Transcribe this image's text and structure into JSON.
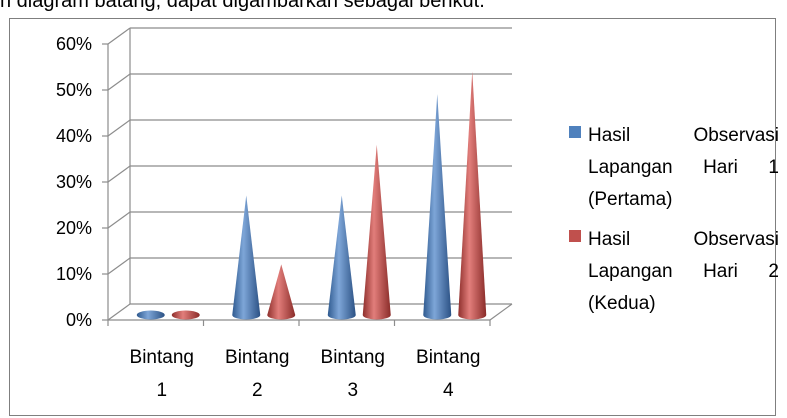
{
  "page": {
    "intro_text": "n diagram batang, dapat digambarkan sebagai berikut."
  },
  "chart_data": {
    "type": "bar",
    "bar_shape": "cone",
    "categories": [
      {
        "line1": "Bintang",
        "line2": "1"
      },
      {
        "line1": "Bintang",
        "line2": "2"
      },
      {
        "line1": "Bintang",
        "line2": "3"
      },
      {
        "line1": "Bintang",
        "line2": "4"
      }
    ],
    "series": [
      {
        "name": "Hasil Observasi Lapangan Hari 1 (Pertama)",
        "color": "#4f81bd",
        "values": [
          0,
          26,
          26,
          48
        ]
      },
      {
        "name": "Hasil Observasi Lapangan Hari 2 (Kedua)",
        "color": "#c0504d",
        "values": [
          0,
          11,
          37,
          53
        ]
      }
    ],
    "ylim": [
      0,
      60
    ],
    "yticks": [
      "0%",
      "10%",
      "20%",
      "30%",
      "40%",
      "50%",
      "60%"
    ],
    "grid": true,
    "legend_position": "right",
    "title": "",
    "xlabel": "",
    "ylabel": ""
  }
}
